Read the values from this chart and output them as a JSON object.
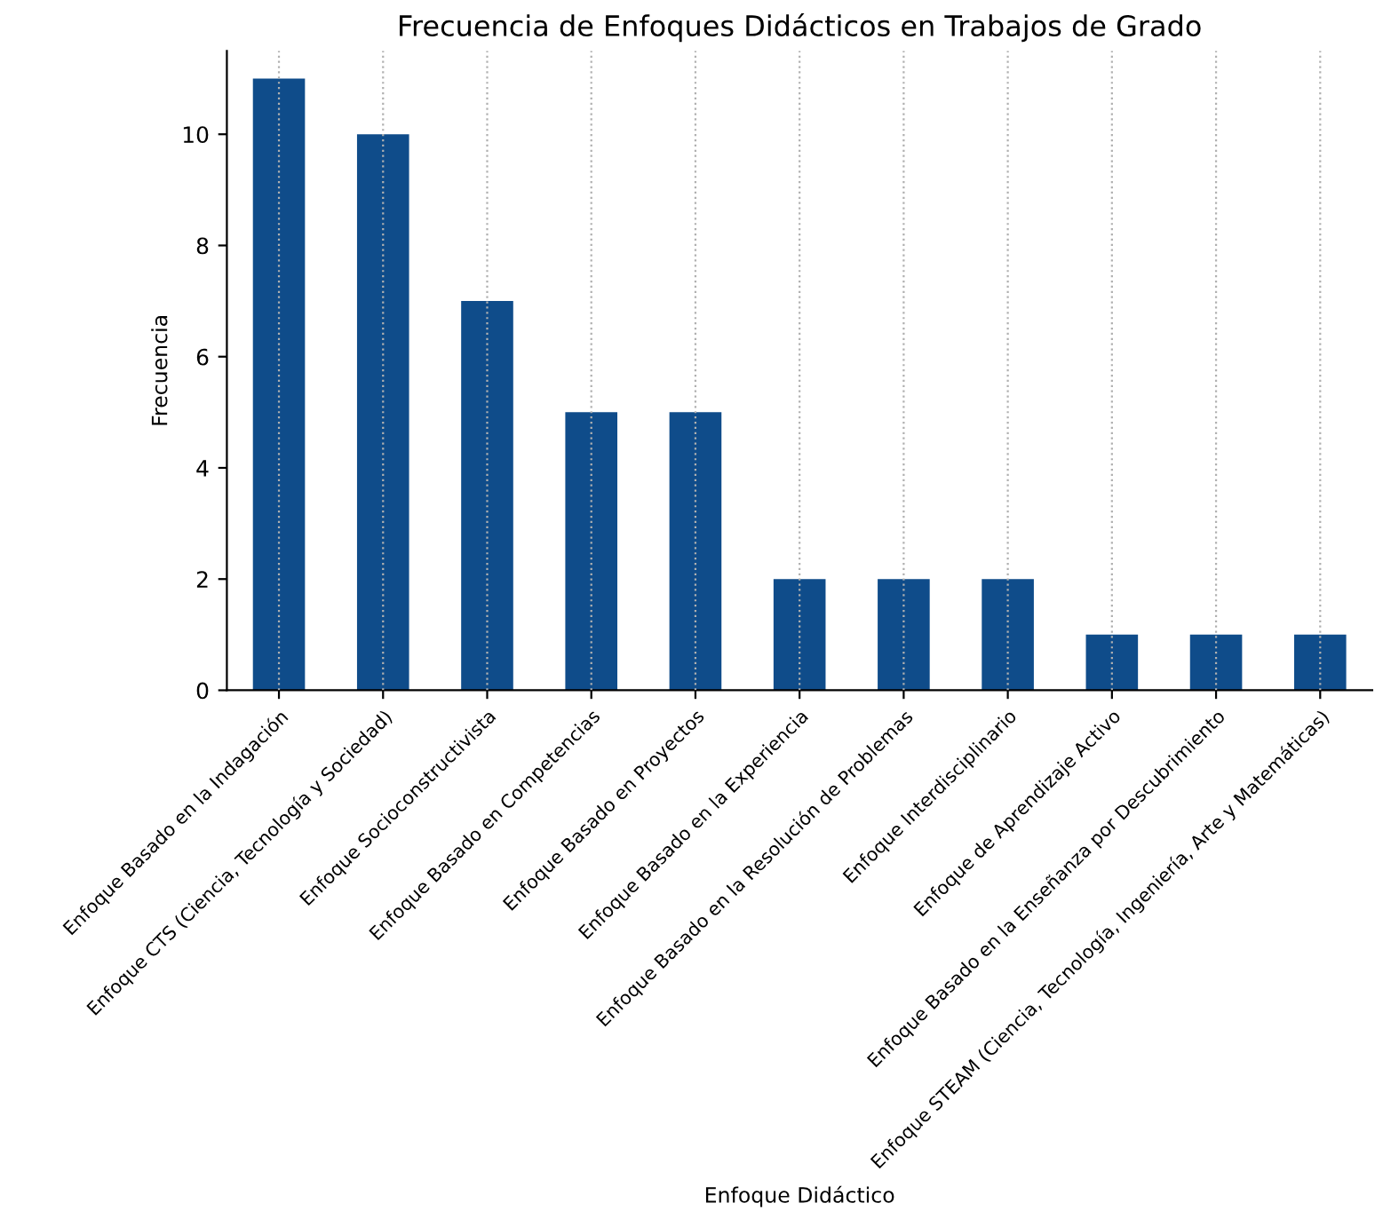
{
  "chart_data": {
    "type": "bar",
    "title": "Frecuencia de Enfoques Didácticos en Trabajos de Grado",
    "xlabel": "Enfoque Didáctico",
    "ylabel": "Frecuencia",
    "categories": [
      "Enfoque Basado en la Indagación",
      "Enfoque CTS (Ciencia, Tecnología y Sociedad)",
      "Enfoque Socioconstructivista",
      "Enfoque Basado en Competencias",
      "Enfoque Basado en Proyectos",
      "Enfoque Basado en la Experiencia",
      "Enfoque Basado en la Resolución de Problemas",
      "Enfoque Interdisciplinario",
      "Enfoque de Aprendizaje Activo",
      "Enfoque Basado en la Enseñanza por Descubrimiento",
      "Enfoque STEAM (Ciencia, Tecnología, Ingeniería, Arte y Matemáticas)"
    ],
    "values": [
      11,
      10,
      7,
      5,
      5,
      2,
      2,
      2,
      1,
      1,
      1
    ],
    "color": "#0f4c8a",
    "ylim": [
      0,
      11.5
    ],
    "yticks": [
      0,
      2,
      4,
      6,
      8,
      10
    ],
    "grid": "x"
  }
}
